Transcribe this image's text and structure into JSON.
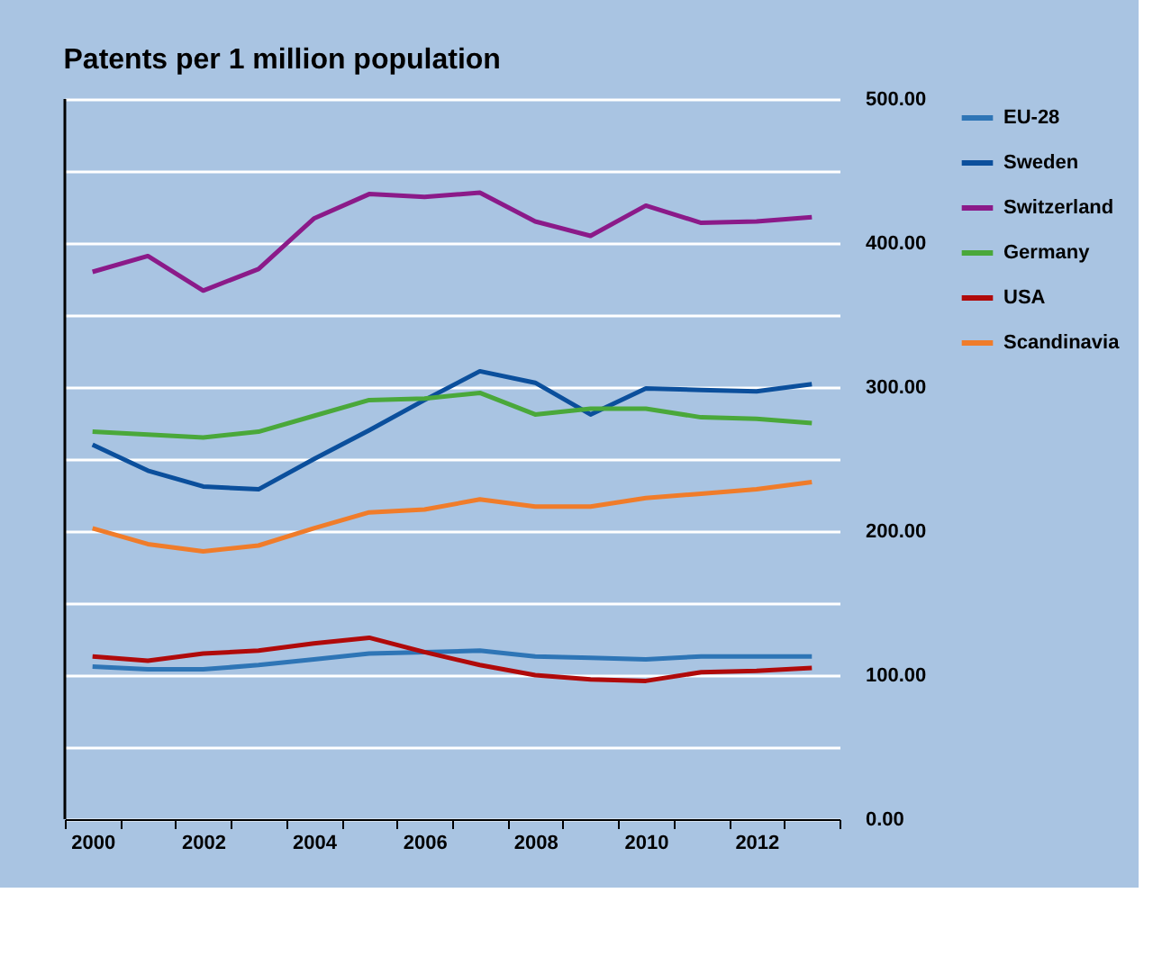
{
  "chart_data": {
    "type": "line",
    "title": "Patents per 1 million population",
    "categories": [
      "2000",
      null,
      "2002",
      null,
      "2004",
      null,
      "2006",
      null,
      "2008",
      null,
      "2010",
      null,
      "2012",
      null
    ],
    "series": [
      {
        "name": "EU-28",
        "color": "#2e75b6",
        "values": [
          106,
          104,
          104,
          107,
          111,
          115,
          116,
          117,
          113,
          112,
          111,
          113,
          113,
          113
        ]
      },
      {
        "name": "Sweden",
        "color": "#0b4f9c",
        "values": [
          260,
          242,
          231,
          229,
          250,
          270,
          291,
          311,
          303,
          281,
          299,
          298,
          297,
          302
        ]
      },
      {
        "name": "Switzerland",
        "color": "#8b1a89",
        "values": [
          380,
          391,
          367,
          382,
          417,
          434,
          432,
          435,
          415,
          405,
          426,
          414,
          415,
          418
        ]
      },
      {
        "name": "Germany",
        "color": "#4aa83a",
        "values": [
          269,
          267,
          265,
          269,
          280,
          291,
          292,
          296,
          281,
          285,
          285,
          279,
          278,
          275
        ]
      },
      {
        "name": "USA",
        "color": "#b00a0a",
        "values": [
          113,
          110,
          115,
          117,
          122,
          126,
          116,
          107,
          100,
          97,
          96,
          102,
          103,
          105
        ]
      },
      {
        "name": "Scandinavia",
        "color": "#f07c2a",
        "values": [
          202,
          191,
          186,
          190,
          202,
          213,
          215,
          222,
          217,
          217,
          223,
          226,
          229,
          234
        ]
      }
    ],
    "ylim": [
      0,
      500
    ],
    "yticks": [
      {
        "value": 0,
        "label": "0.00"
      },
      {
        "value": 50,
        "label": null
      },
      {
        "value": 100,
        "label": "100.00"
      },
      {
        "value": 150,
        "label": null
      },
      {
        "value": 200,
        "label": "200.00"
      },
      {
        "value": 250,
        "label": null
      },
      {
        "value": 300,
        "label": "300.00"
      },
      {
        "value": 350,
        "label": null
      },
      {
        "value": 400,
        "label": "400.00"
      },
      {
        "value": 450,
        "label": null
      },
      {
        "value": 500,
        "label": "500.00"
      }
    ],
    "grid": "y",
    "legend": "right",
    "marker": "none",
    "line_style": "solid"
  }
}
